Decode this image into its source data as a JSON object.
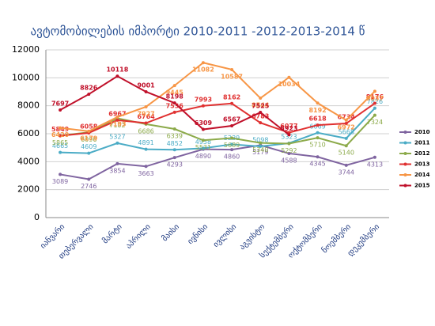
{
  "chart_data": {
    "type": "line",
    "title": "ავტომობილების  იმპორტი 2010-2011 -2012-2013-2014 წ",
    "categories": [
      "იანვარი",
      "თებერვალი",
      "მარტი",
      "აპრილი",
      "მაისი",
      "ივნისი",
      "ივლისი",
      "აგვისტო",
      "სექტემბერი",
      "ოქტომბერი",
      "ნოემბერი",
      "დეკემბერი"
    ],
    "series": [
      {
        "name": "2010",
        "color": "#7f64a0",
        "values": [
          3089,
          2746,
          3854,
          3663,
          4293,
          4890,
          4860,
          5179,
          4588,
          4345,
          3744,
          4313
        ]
      },
      {
        "name": "2011",
        "color": "#4bacc6",
        "values": [
          4665,
          4609,
          5327,
          4891,
          4852,
          4958,
          5239,
          5098,
          5323,
          6069,
          5668,
          7826
        ]
      },
      {
        "name": "2012",
        "color": "#8caa4a",
        "values": [
          5865,
          6096,
          7102,
          6686,
          6339,
          5531,
          5689,
          5340,
          5292,
          5710,
          5140,
          7324
        ]
      },
      {
        "name": "2013",
        "color": "#e03030",
        "values": [
          5849,
          6058,
          6967,
          6764,
          7536,
          7993,
          8162,
          6783,
          6077,
          6618,
          6734,
          8176
        ]
      },
      {
        "name": "2014",
        "color": "#f79646",
        "values": [
          6420,
          6179,
          7193,
          7927,
          9445,
          11082,
          10587,
          8544,
          10034,
          8192,
          6972,
          9037
        ]
      },
      {
        "name": "2015",
        "color": "#c0102a",
        "values": [
          7697,
          8826,
          10118,
          9001,
          8198,
          6309,
          6567,
          7525,
          5923,
          null,
          null,
          null
        ]
      }
    ],
    "ylim": [
      0,
      12000
    ],
    "yticks": [
      0,
      2000,
      4000,
      6000,
      8000,
      10000,
      12000
    ],
    "grid": true,
    "legend": "right"
  }
}
